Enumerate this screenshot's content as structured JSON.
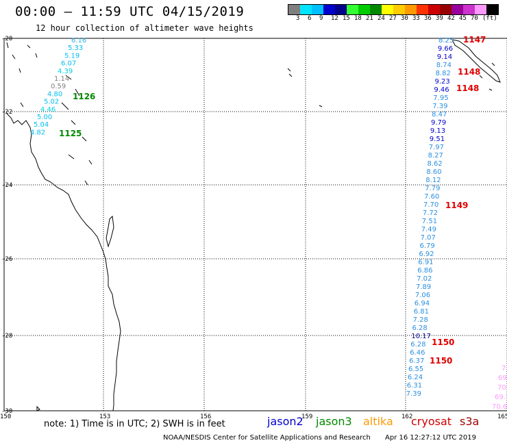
{
  "title": "00:00 – 11:59 UTC 04/15/2019",
  "subtitle": "12 hour collection of altimeter wave heights",
  "scale": {
    "colors": [
      "#7f7f7f",
      "#00e5ff",
      "#00bfff",
      "#0000cc",
      "#00008b",
      "#33ff33",
      "#00cc00",
      "#008800",
      "#ffff00",
      "#ffcc00",
      "#ff9900",
      "#ff3300",
      "#cc0000",
      "#990000",
      "#990099",
      "#cc33cc",
      "#ff99ff",
      "#000000"
    ],
    "labels": [
      "3",
      "6",
      "9",
      "12",
      "15",
      "18",
      "21",
      "24",
      "27",
      "30",
      "33",
      "36",
      "39",
      "42",
      "45",
      "70",
      "(ft)"
    ]
  },
  "axes": {
    "lat_labels": [
      "-20",
      "-22",
      "-24",
      "-26",
      "-28",
      "-30"
    ],
    "lon_labels": [
      "150",
      "153",
      "156",
      "159",
      "162",
      "165"
    ]
  },
  "tracks": {
    "west": [
      {
        "v": "6.16",
        "c": "#33b5e5"
      },
      {
        "v": "5.33",
        "c": "#00bfef"
      },
      {
        "v": "5.19",
        "c": "#00bfef"
      },
      {
        "v": "6.07",
        "c": "#00bfef"
      },
      {
        "v": "4.39",
        "c": "#00d0e0"
      },
      {
        "v": "1.14",
        "c": "#7f7f7f"
      },
      {
        "v": "0.59",
        "c": "#7f7f7f"
      },
      {
        "v": "4.80",
        "c": "#00bfef"
      },
      {
        "v": "5.02",
        "c": "#00bfef"
      },
      {
        "v": "4.46",
        "c": "#00d0e0"
      },
      {
        "v": "5.00",
        "c": "#00bfef"
      },
      {
        "v": "5.04",
        "c": "#00bfef"
      },
      {
        "v": "4.82",
        "c": "#00bfef"
      }
    ],
    "east": [
      {
        "v": "8.25",
        "c": "#2a8fe0"
      },
      {
        "v": "9.66",
        "c": "#0000cc"
      },
      {
        "v": "9.14",
        "c": "#0000cc"
      },
      {
        "v": "8.74",
        "c": "#2a8fe0"
      },
      {
        "v": "8.82",
        "c": "#2a8fe0"
      },
      {
        "v": "9.23",
        "c": "#0000cc"
      },
      {
        "v": "9.46",
        "c": "#0000cc"
      },
      {
        "v": "7.95",
        "c": "#2a8fe0"
      },
      {
        "v": "7.39",
        "c": "#2a8fe0"
      },
      {
        "v": "8.47",
        "c": "#2a8fe0"
      },
      {
        "v": "9.79",
        "c": "#0000cc"
      },
      {
        "v": "9.13",
        "c": "#0000cc"
      },
      {
        "v": "9.51",
        "c": "#0000cc"
      },
      {
        "v": "7.97",
        "c": "#2a8fe0"
      },
      {
        "v": "8.27",
        "c": "#2a8fe0"
      },
      {
        "v": "8.62",
        "c": "#2a8fe0"
      },
      {
        "v": "8.60",
        "c": "#2a8fe0"
      },
      {
        "v": "8.12",
        "c": "#2a8fe0"
      },
      {
        "v": "7.79",
        "c": "#2a8fe0"
      },
      {
        "v": "7.60",
        "c": "#2a8fe0"
      },
      {
        "v": "7.70",
        "c": "#2a8fe0"
      },
      {
        "v": "7.72",
        "c": "#2a8fe0"
      },
      {
        "v": "7.51",
        "c": "#2a8fe0"
      },
      {
        "v": "7.49",
        "c": "#2a8fe0"
      },
      {
        "v": "7.07",
        "c": "#2a8fe0"
      },
      {
        "v": "6.79",
        "c": "#2a8fe0"
      },
      {
        "v": "6.92",
        "c": "#2a8fe0"
      },
      {
        "v": "6.91",
        "c": "#2a8fe0"
      },
      {
        "v": "6.86",
        "c": "#2a8fe0"
      },
      {
        "v": "7.02",
        "c": "#2a8fe0"
      },
      {
        "v": "7.89",
        "c": "#2a8fe0"
      },
      {
        "v": "7.06",
        "c": "#2a8fe0"
      },
      {
        "v": "6.94",
        "c": "#2a8fe0"
      },
      {
        "v": "6.81",
        "c": "#2a8fe0"
      },
      {
        "v": "7.28",
        "c": "#2a8fe0"
      },
      {
        "v": "6.28",
        "c": "#2a8fe0"
      },
      {
        "v": "10.17",
        "c": "#00008b"
      },
      {
        "v": "6.28",
        "c": "#2a8fe0"
      },
      {
        "v": "6.46",
        "c": "#2a8fe0"
      },
      {
        "v": "6.37",
        "c": "#2a8fe0"
      },
      {
        "v": "6.55",
        "c": "#2a8fe0"
      },
      {
        "v": "6.24",
        "c": "#2a8fe0"
      },
      {
        "v": "6.31",
        "c": "#2a8fe0"
      },
      {
        "v": "7.39",
        "c": "#2a8fe0"
      }
    ],
    "edge": [
      {
        "v": "7.",
        "c": "#ff99ff"
      },
      {
        "v": "69",
        "c": "#ff99ff"
      },
      {
        "v": "70",
        "c": "#ff99ff"
      },
      {
        "v": "69.",
        "c": "#ff99ff"
      },
      {
        "v": "70.6",
        "c": "#ff99ff"
      }
    ]
  },
  "cycles": [
    {
      "v": "1126",
      "c": "#008800"
    },
    {
      "v": "1125",
      "c": "#008800"
    },
    {
      "v": "1147",
      "c": "#e00000"
    },
    {
      "v": "1148",
      "c": "#e00000"
    },
    {
      "v": "1148",
      "c": "#e00000"
    },
    {
      "v": "1149",
      "c": "#e00000"
    },
    {
      "v": "1150",
      "c": "#e00000"
    },
    {
      "v": "1150",
      "c": "#e00000"
    }
  ],
  "note": "note: 1) Time is in UTC; 2) SWH is in feet",
  "satellites": [
    {
      "name": "jason2",
      "color": "#0000cc"
    },
    {
      "name": "jason3",
      "color": "#008800"
    },
    {
      "name": "altika",
      "color": "#ff9900"
    },
    {
      "name": "cryosat",
      "color": "#cc0000"
    },
    {
      "name": "s3a",
      "color": "#990000"
    }
  ],
  "credit": "NOAA/NESDIS Center for Satellite Applications and Research",
  "timestamp": "Apr 16 12:27:12 UTC 2019"
}
